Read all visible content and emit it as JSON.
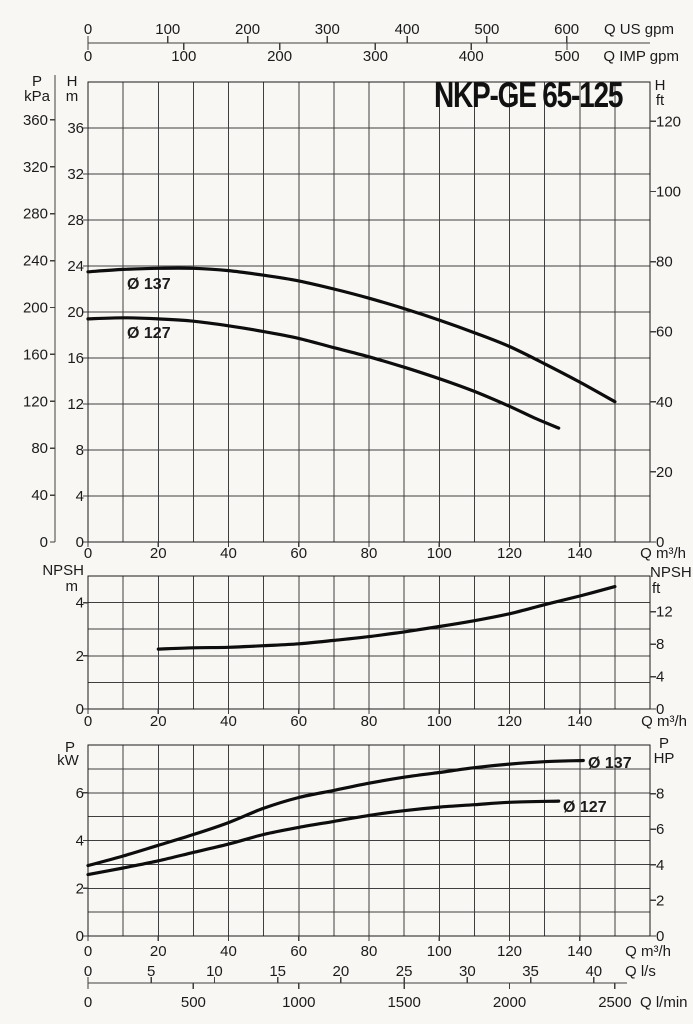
{
  "chart_data": {
    "type": "line",
    "title": "NKP-GE 65-125",
    "top_axes": [
      {
        "id": "us_gpm",
        "unit": "Q US gpm",
        "ticks": [
          0,
          100,
          200,
          300,
          400,
          500,
          600
        ]
      },
      {
        "id": "imp_gpm",
        "unit": "Q IMP gpm",
        "ticks": [
          0,
          100,
          200,
          300,
          400,
          500
        ]
      }
    ],
    "charts": [
      {
        "id": "head",
        "y_outer": {
          "header": [
            "P",
            "kPa"
          ],
          "ticks": [
            0,
            40,
            80,
            120,
            160,
            200,
            240,
            280,
            320,
            360
          ]
        },
        "y_left": {
          "header": [
            "H",
            "m"
          ],
          "ticks": [
            0,
            4,
            8,
            12,
            16,
            20,
            24,
            28,
            32,
            36
          ],
          "grid": [
            4,
            8,
            12,
            16,
            20,
            24,
            28,
            32,
            36
          ],
          "lim": [
            0,
            40
          ]
        },
        "y_right": {
          "header": [
            "H",
            "ft"
          ],
          "ticks": [
            0,
            20,
            40,
            60,
            80,
            100,
            120
          ]
        },
        "x": {
          "unit": "Q m³/h",
          "ticks": [
            0,
            20,
            40,
            60,
            80,
            100,
            120,
            140
          ],
          "grid_step": 10,
          "lim": [
            0,
            160
          ]
        },
        "series": [
          {
            "label": "Ø 137",
            "points": [
              [
                0,
                23.5
              ],
              [
                10,
                23.7
              ],
              [
                20,
                23.8
              ],
              [
                30,
                23.8
              ],
              [
                40,
                23.6
              ],
              [
                50,
                23.2
              ],
              [
                60,
                22.7
              ],
              [
                70,
                22.0
              ],
              [
                80,
                21.2
              ],
              [
                90,
                20.3
              ],
              [
                100,
                19.3
              ],
              [
                110,
                18.2
              ],
              [
                120,
                17.0
              ],
              [
                130,
                15.5
              ],
              [
                140,
                13.9
              ],
              [
                150,
                12.2
              ]
            ]
          },
          {
            "label": "Ø 127",
            "points": [
              [
                0,
                19.4
              ],
              [
                10,
                19.5
              ],
              [
                20,
                19.4
              ],
              [
                30,
                19.2
              ],
              [
                40,
                18.8
              ],
              [
                50,
                18.3
              ],
              [
                60,
                17.7
              ],
              [
                70,
                16.9
              ],
              [
                80,
                16.1
              ],
              [
                90,
                15.2
              ],
              [
                100,
                14.2
              ],
              [
                110,
                13.1
              ],
              [
                120,
                11.8
              ],
              [
                127,
                10.8
              ],
              [
                134,
                9.9
              ]
            ]
          }
        ]
      },
      {
        "id": "npsh",
        "y_left": {
          "header": [
            "NPSH",
            "m"
          ],
          "ticks": [
            0,
            2,
            4
          ],
          "grid": [
            1,
            2,
            3,
            4
          ],
          "lim": [
            0,
            5
          ]
        },
        "y_right": {
          "header": [
            "NPSH",
            "ft"
          ],
          "ticks": [
            0,
            4,
            8,
            12
          ]
        },
        "x": {
          "unit": "Q m³/h",
          "ticks": [
            0,
            20,
            40,
            60,
            80,
            100,
            120,
            140
          ],
          "grid_step": 10,
          "lim": [
            0,
            160
          ]
        },
        "series": [
          {
            "label": "",
            "points": [
              [
                20,
                2.25
              ],
              [
                30,
                2.3
              ],
              [
                40,
                2.32
              ],
              [
                50,
                2.38
              ],
              [
                60,
                2.45
              ],
              [
                70,
                2.58
              ],
              [
                80,
                2.72
              ],
              [
                90,
                2.9
              ],
              [
                100,
                3.1
              ],
              [
                110,
                3.32
              ],
              [
                120,
                3.58
              ],
              [
                130,
                3.92
              ],
              [
                140,
                4.25
              ],
              [
                150,
                4.6
              ]
            ]
          }
        ]
      },
      {
        "id": "power",
        "y_left": {
          "header": [
            "P",
            "kW"
          ],
          "ticks": [
            0,
            2,
            4,
            6
          ],
          "grid": [
            1,
            2,
            3,
            4,
            5,
            6,
            7
          ],
          "lim": [
            0,
            8
          ]
        },
        "y_right": {
          "header": [
            "P",
            "HP"
          ],
          "ticks": [
            0,
            2,
            4,
            6,
            8
          ]
        },
        "x": {
          "unit": "Q m³/h",
          "ticks": [
            0,
            20,
            40,
            60,
            80,
            100,
            120,
            140
          ],
          "grid_step": 10,
          "lim": [
            0,
            160
          ]
        },
        "series": [
          {
            "label": "Ø 137",
            "points": [
              [
                0,
                2.95
              ],
              [
                10,
                3.35
              ],
              [
                20,
                3.8
              ],
              [
                30,
                4.25
              ],
              [
                40,
                4.75
              ],
              [
                50,
                5.35
              ],
              [
                60,
                5.8
              ],
              [
                70,
                6.1
              ],
              [
                80,
                6.4
              ],
              [
                90,
                6.65
              ],
              [
                100,
                6.85
              ],
              [
                110,
                7.05
              ],
              [
                120,
                7.2
              ],
              [
                130,
                7.3
              ],
              [
                141,
                7.35
              ]
            ]
          },
          {
            "label": "Ø 127",
            "points": [
              [
                0,
                2.57
              ],
              [
                10,
                2.85
              ],
              [
                20,
                3.15
              ],
              [
                30,
                3.5
              ],
              [
                40,
                3.85
              ],
              [
                50,
                4.25
              ],
              [
                60,
                4.55
              ],
              [
                70,
                4.8
              ],
              [
                80,
                5.05
              ],
              [
                90,
                5.25
              ],
              [
                100,
                5.4
              ],
              [
                110,
                5.5
              ],
              [
                120,
                5.6
              ],
              [
                134,
                5.65
              ]
            ]
          }
        ]
      }
    ],
    "footer_axes": [
      {
        "id": "l_s",
        "unit": "Q l/s",
        "ticks": [
          0,
          5,
          10,
          15,
          20,
          25,
          30,
          35,
          40
        ]
      },
      {
        "id": "l_min",
        "unit": "Q l/min",
        "ticks": [
          0,
          500,
          1000,
          1500,
          2000,
          2500
        ]
      }
    ],
    "colors": {
      "paper": "#f8f7f4",
      "ink": "#1b1b1b",
      "grid": "#3f3f3f",
      "curve": "#0d0d0d"
    }
  }
}
